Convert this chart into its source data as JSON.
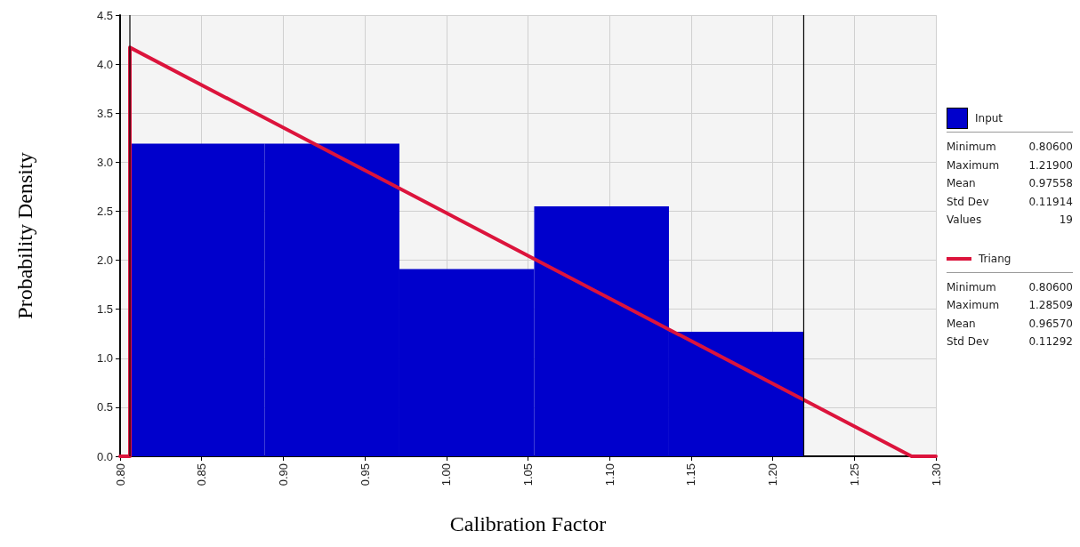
{
  "chart_data": {
    "type": "histogram",
    "xlabel": "Calibration Factor",
    "ylabel": "Probability Density",
    "bins": [
      0.806,
      0.8886,
      0.9712,
      1.0538,
      1.1364,
      1.219
    ],
    "series": [
      {
        "name": "Input",
        "color": "#0000cc",
        "values": [
          3.19,
          3.19,
          1.91,
          2.55,
          1.27
        ]
      },
      {
        "type": "line",
        "name": "Triang",
        "color": "#dc143c",
        "x": [
          0.8,
          0.806,
          0.806,
          1.28509,
          1.3
        ],
        "values": [
          0,
          0,
          4.17,
          0,
          0
        ]
      }
    ],
    "xlim": [
      0.8,
      1.3
    ],
    "xticks": [
      {
        "value": 0.8,
        "label": "0.80"
      },
      {
        "value": 0.85,
        "label": "0.85"
      },
      {
        "value": 0.9,
        "label": "0.90"
      },
      {
        "value": 0.95,
        "label": "0.95"
      },
      {
        "value": 1.0,
        "label": "1.00"
      },
      {
        "value": 1.05,
        "label": "1.05"
      },
      {
        "value": 1.1,
        "label": "1.10"
      },
      {
        "value": 1.15,
        "label": "1.15"
      },
      {
        "value": 1.2,
        "label": "1.20"
      },
      {
        "value": 1.25,
        "label": "1.25"
      },
      {
        "value": 1.3,
        "label": "1.30"
      }
    ],
    "ylim": [
      0,
      4.5
    ],
    "yticks": [
      {
        "value": 0,
        "label": "0.0"
      },
      {
        "value": 0.5,
        "label": "0.5"
      },
      {
        "value": 1,
        "label": "1.0"
      },
      {
        "value": 1.5,
        "label": "1.5"
      },
      {
        "value": 2,
        "label": "2.0"
      },
      {
        "value": 2.5,
        "label": "2.5"
      },
      {
        "value": 3,
        "label": "3.0"
      },
      {
        "value": 3.5,
        "label": "3.5"
      },
      {
        "value": 4,
        "label": "4.0"
      },
      {
        "value": 4.5,
        "label": "4.5"
      }
    ],
    "ref_lines": [
      {
        "axis": "x",
        "value": 0.806,
        "color": "#000000"
      },
      {
        "axis": "x",
        "value": 1.219,
        "color": "#000000"
      }
    ],
    "annotations": [
      "Minimum 0.80600\nMaximum 1.21900\nMean 0.97558\nStd Dev 0.11914\nValues 19",
      "Minimum 0.80600\nMaximum 1.28509\nMean 0.96570\nStd Dev 0.11292"
    ],
    "grid": true,
    "legend": "right",
    "marker": "none",
    "line_style": "solid"
  }
}
